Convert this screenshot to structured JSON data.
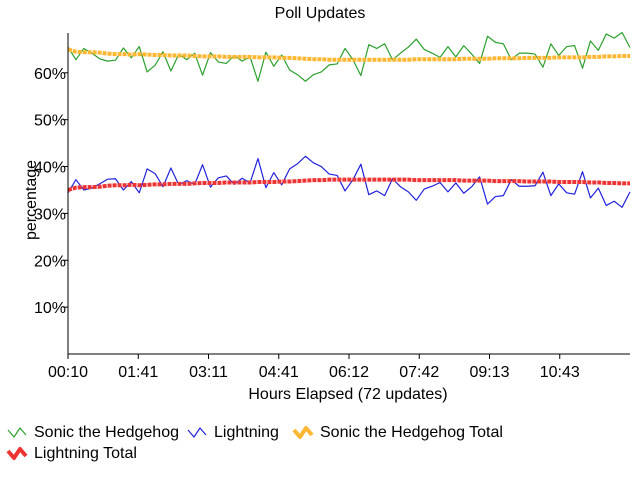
{
  "chart_data": {
    "type": "line",
    "title": "Poll Updates",
    "xlabel": "Hours Elapsed (72 updates)",
    "ylabel": "percentage",
    "ylim": [
      0,
      68.5
    ],
    "y_ticks": [
      10,
      20,
      30,
      40,
      50,
      60
    ],
    "y_tick_format": "{v}%",
    "x_count": 72,
    "x_tick_labels": [
      "00:10",
      "01:41",
      "03:11",
      "04:41",
      "06:12",
      "07:42",
      "09:13",
      "10:43"
    ],
    "grid": false,
    "legend_position": "bottom",
    "series": [
      {
        "name": "Sonic the Hedgehog",
        "color": "#2ca02c",
        "style": "thin",
        "values": [
          65.5,
          62.8,
          65.2,
          64.2,
          63.0,
          62.5,
          62.7,
          65.3,
          63.2,
          65.6,
          60.2,
          61.6,
          64.5,
          60.4,
          64.0,
          62.8,
          64.2,
          59.5,
          64.3,
          62.3,
          62.0,
          63.7,
          62.5,
          63.4,
          58.2,
          64.4,
          61.4,
          63.8,
          60.6,
          59.6,
          58.2,
          59.6,
          60.2,
          61.7,
          61.9,
          65.2,
          62.8,
          59.4,
          66.0,
          65.2,
          66.2,
          62.8,
          64.2,
          65.5,
          67.2,
          65.0,
          64.2,
          63.3,
          65.6,
          63.4,
          65.8,
          64.0,
          62.0,
          67.8,
          66.5,
          66.2,
          62.8,
          64.2,
          64.2,
          64.0,
          61.2,
          66.2,
          63.7,
          65.6,
          65.8,
          61.0,
          66.8,
          64.8,
          68.3,
          67.4,
          68.6,
          65.4
        ]
      },
      {
        "name": "Lightning",
        "color": "#2222dd",
        "style": "thin",
        "values": [
          34.4,
          37.2,
          35.0,
          35.4,
          36.3,
          37.3,
          37.4,
          35.0,
          36.8,
          34.4,
          39.5,
          38.5,
          35.7,
          39.7,
          36.1,
          37.0,
          36.2,
          40.4,
          35.6,
          37.6,
          38.0,
          36.2,
          37.5,
          36.5,
          41.7,
          35.5,
          38.7,
          36.1,
          39.5,
          40.6,
          42.2,
          40.8,
          40.0,
          38.4,
          38.1,
          34.8,
          37.2,
          40.5,
          34.0,
          34.8,
          33.8,
          37.4,
          35.7,
          34.6,
          32.8,
          35.2,
          35.8,
          36.6,
          34.6,
          36.5,
          34.3,
          35.7,
          37.8,
          32.0,
          33.6,
          33.8,
          37.2,
          35.8,
          35.8,
          35.9,
          38.8,
          33.8,
          36.3,
          34.4,
          34.1,
          38.9,
          33.3,
          35.4,
          31.7,
          32.6,
          31.3,
          34.6
        ]
      },
      {
        "name": "Sonic the Hedgehog Total",
        "color": "#ffb732",
        "style": "thick",
        "values": [
          65.0,
          64.5,
          64.4,
          64.4,
          64.3,
          64.1,
          64.0,
          64.0,
          63.9,
          64.0,
          63.9,
          63.8,
          63.8,
          63.7,
          63.7,
          63.7,
          63.6,
          63.5,
          63.5,
          63.5,
          63.4,
          63.4,
          63.4,
          63.4,
          63.3,
          63.3,
          63.3,
          63.2,
          63.2,
          63.1,
          63.0,
          62.9,
          62.9,
          62.8,
          62.8,
          62.8,
          62.8,
          62.8,
          62.8,
          62.8,
          62.8,
          62.8,
          62.8,
          62.8,
          62.9,
          62.9,
          62.9,
          62.9,
          62.9,
          62.9,
          63.0,
          63.0,
          63.0,
          63.0,
          63.1,
          63.1,
          63.1,
          63.1,
          63.2,
          63.2,
          63.2,
          63.2,
          63.3,
          63.3,
          63.3,
          63.3,
          63.4,
          63.4,
          63.5,
          63.5,
          63.6,
          63.6
        ]
      },
      {
        "name": "Lightning Total",
        "color": "#ee3333",
        "style": "thick",
        "values": [
          35.0,
          35.5,
          35.6,
          35.6,
          35.7,
          35.9,
          36.0,
          36.0,
          36.1,
          36.0,
          36.1,
          36.2,
          36.2,
          36.3,
          36.3,
          36.3,
          36.4,
          36.5,
          36.5,
          36.5,
          36.6,
          36.6,
          36.6,
          36.6,
          36.7,
          36.7,
          36.7,
          36.8,
          36.8,
          36.9,
          37.0,
          37.1,
          37.1,
          37.2,
          37.2,
          37.2,
          37.2,
          37.2,
          37.2,
          37.2,
          37.2,
          37.2,
          37.2,
          37.2,
          37.1,
          37.1,
          37.1,
          37.1,
          37.1,
          37.1,
          37.0,
          37.0,
          37.0,
          37.0,
          36.9,
          36.9,
          36.9,
          36.9,
          36.8,
          36.8,
          36.8,
          36.8,
          36.7,
          36.7,
          36.7,
          36.7,
          36.6,
          36.6,
          36.5,
          36.5,
          36.4,
          36.4
        ]
      }
    ]
  }
}
